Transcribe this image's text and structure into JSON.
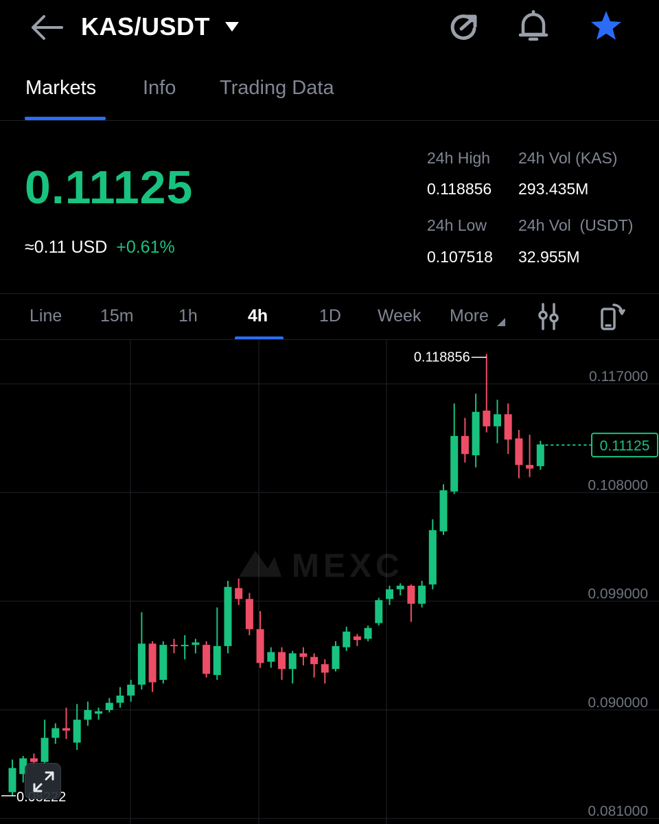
{
  "header": {
    "pair": "KAS/USDT",
    "icons": [
      "back-arrow-icon",
      "dropdown-caret-icon",
      "refresh-icon",
      "bell-icon",
      "star-icon"
    ],
    "star_color": "#2b6cf6"
  },
  "tabs": [
    "Markets",
    "Info",
    "Trading Data"
  ],
  "active_tab": "Markets",
  "ticker": {
    "last_price": "0.11125",
    "approx_usd": "≈0.11",
    "usd_unit": "USD",
    "change_pct": "+0.61%",
    "up_color": "#19c27f",
    "down_color": "#ee4d66"
  },
  "stats": {
    "high_label": "24h High",
    "high_value": "0.118856",
    "low_label": "24h Low",
    "low_value": "0.107518",
    "vol_base_label": "24h Vol (KAS)",
    "vol_base_value": "293.435M",
    "vol_quote_label": "24h Vol  (USDT)",
    "vol_quote_value": "32.955M"
  },
  "timeframes": [
    "Line",
    "15m",
    "1h",
    "4h",
    "1D",
    "Week",
    "More"
  ],
  "active_timeframe": "4h",
  "toolbar_icons": [
    "indicator-settings-icon",
    "rotate-screen-icon",
    "expand-icon"
  ],
  "chart_data": {
    "type": "candlestick",
    "y_ticks": [
      "0.117000",
      "0.108000",
      "0.099000",
      "0.090000",
      "0.081000"
    ],
    "ylim": [
      0.079,
      0.12
    ],
    "current_price_label": "0.11125",
    "high_marker": "0.118856",
    "low_marker": "0.08222",
    "watermark": "MEXC",
    "candles": [
      [
        0.0825,
        0.0845,
        0.0822,
        0.0852
      ],
      [
        0.084,
        0.0853,
        0.0833,
        0.0855
      ],
      [
        0.0853,
        0.085,
        0.0846,
        0.0857
      ],
      [
        0.085,
        0.087,
        0.0848,
        0.0885
      ],
      [
        0.087,
        0.0878,
        0.0865,
        0.0882
      ],
      [
        0.0878,
        0.0876,
        0.0869,
        0.0895
      ],
      [
        0.0866,
        0.0885,
        0.086,
        0.0898
      ],
      [
        0.0885,
        0.0893,
        0.088,
        0.09
      ],
      [
        0.089,
        0.0892,
        0.0885,
        0.0895
      ],
      [
        0.0893,
        0.0899,
        0.0891,
        0.0903
      ],
      [
        0.0899,
        0.0905,
        0.0895,
        0.0912
      ],
      [
        0.0905,
        0.0914,
        0.09,
        0.0918
      ],
      [
        0.0914,
        0.0948,
        0.091,
        0.0974
      ],
      [
        0.0948,
        0.0916,
        0.0908,
        0.095
      ],
      [
        0.0918,
        0.0947,
        0.0915,
        0.095
      ],
      [
        0.0947,
        0.0946,
        0.094,
        0.0952
      ],
      [
        0.0946,
        0.0947,
        0.0935,
        0.0955
      ],
      [
        0.0947,
        0.0949,
        0.094,
        0.0952
      ],
      [
        0.0947,
        0.0923,
        0.092,
        0.095
      ],
      [
        0.0922,
        0.0946,
        0.0918,
        0.0978
      ],
      [
        0.0946,
        0.0995,
        0.094,
        0.1
      ],
      [
        0.0994,
        0.0985,
        0.098,
        0.1002
      ],
      [
        0.0985,
        0.096,
        0.0955,
        0.099
      ],
      [
        0.096,
        0.0932,
        0.0928,
        0.0975
      ],
      [
        0.0933,
        0.0941,
        0.0928,
        0.0945
      ],
      [
        0.0941,
        0.0927,
        0.0918,
        0.0945
      ],
      [
        0.0927,
        0.094,
        0.0915,
        0.0942
      ],
      [
        0.094,
        0.0937,
        0.093,
        0.0945
      ],
      [
        0.0937,
        0.0931,
        0.092,
        0.094
      ],
      [
        0.0931,
        0.0924,
        0.0915,
        0.0935
      ],
      [
        0.0927,
        0.0946,
        0.0925,
        0.095
      ],
      [
        0.0945,
        0.0958,
        0.0942,
        0.0962
      ],
      [
        0.0954,
        0.0951,
        0.0946,
        0.0956
      ],
      [
        0.0952,
        0.0961,
        0.095,
        0.0963
      ],
      [
        0.0965,
        0.0984,
        0.0963,
        0.0986
      ],
      [
        0.0985,
        0.0993,
        0.098,
        0.0996
      ],
      [
        0.0993,
        0.0996,
        0.0988,
        0.0998
      ],
      [
        0.0996,
        0.0981,
        0.0966,
        0.0997
      ],
      [
        0.0981,
        0.0996,
        0.0978,
        0.1
      ],
      [
        0.0997,
        0.1042,
        0.0993,
        0.1051
      ],
      [
        0.1041,
        0.1075,
        0.1038,
        0.108
      ],
      [
        0.1074,
        0.112,
        0.1072,
        0.1147
      ],
      [
        0.112,
        0.1105,
        0.1098,
        0.1135
      ],
      [
        0.1104,
        0.114,
        0.1094,
        0.1155
      ],
      [
        0.1141,
        0.1128,
        0.1123,
        0.1188
      ],
      [
        0.1128,
        0.1138,
        0.1114,
        0.115
      ],
      [
        0.1138,
        0.1117,
        0.1105,
        0.1147
      ],
      [
        0.1118,
        0.1096,
        0.1085,
        0.1125
      ],
      [
        0.1096,
        0.1093,
        0.1086,
        0.1121
      ],
      [
        0.1095,
        0.1113,
        0.1092,
        0.1116
      ]
    ]
  }
}
